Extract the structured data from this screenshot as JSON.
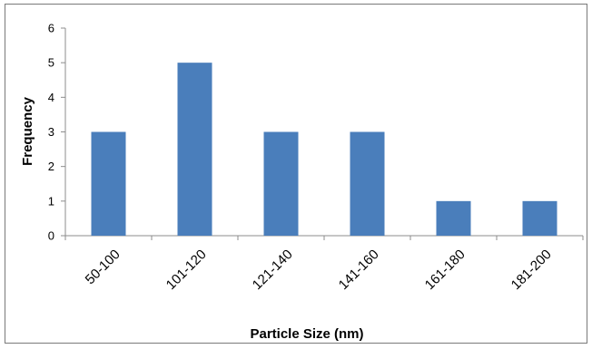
{
  "chart_data": {
    "type": "bar",
    "title": "",
    "xlabel": "Particle Size (nm)",
    "ylabel": "Frequency",
    "categories": [
      "50-100",
      "101-120",
      "121-140",
      "141-160",
      "161-180",
      "181-200"
    ],
    "values": [
      3,
      5,
      3,
      3,
      1,
      1
    ],
    "ylim": [
      0,
      6
    ],
    "yticks": [
      "0",
      "1",
      "2",
      "3",
      "4",
      "5",
      "6"
    ],
    "grid": false,
    "legend": "none",
    "bar_color": "#4a7ebb"
  }
}
